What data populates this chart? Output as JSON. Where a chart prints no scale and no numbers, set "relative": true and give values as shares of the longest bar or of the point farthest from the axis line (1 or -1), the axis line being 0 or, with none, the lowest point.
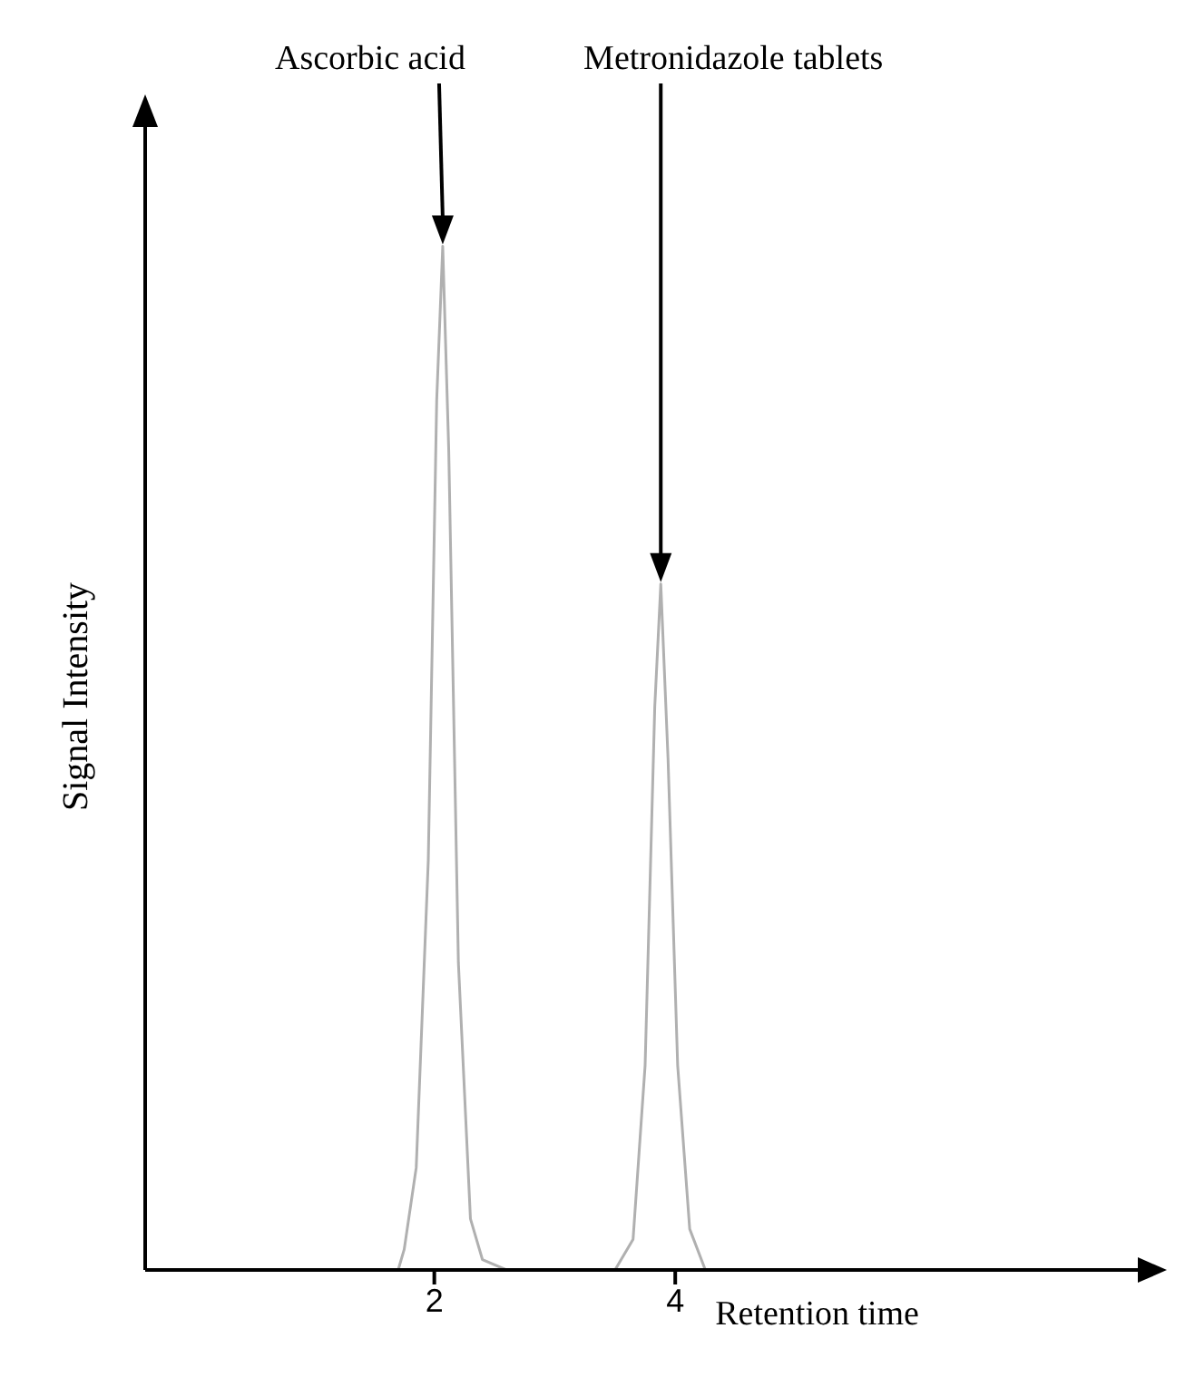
{
  "chart_data": {
    "type": "line",
    "relative": true,
    "xlabel": "Retention time",
    "ylabel": "Signal Intensity",
    "x": [
      -0.4,
      1.7,
      1.75,
      1.85,
      1.95,
      2.02,
      2.07,
      2.12,
      2.2,
      2.3,
      2.4,
      2.6,
      3.5,
      3.65,
      3.75,
      3.83,
      3.88,
      3.94,
      4.02,
      4.12,
      4.25,
      7.9
    ],
    "series": [
      {
        "color": "#b0b0b0",
        "values": [
          0,
          0,
          0.02,
          0.1,
          0.4,
          0.85,
          1,
          0.8,
          0.3,
          0.05,
          0.01,
          0,
          0,
          0.03,
          0.2,
          0.55,
          0.67,
          0.5,
          0.2,
          0.04,
          0,
          0
        ]
      }
    ],
    "xlim": [
      -0.4,
      7.9
    ],
    "xticks": [
      2,
      4
    ],
    "marker": "none",
    "line_style": "solid",
    "legend": false,
    "annotations": [
      "Ascorbic acid",
      "Metronidazole tablets"
    ]
  }
}
